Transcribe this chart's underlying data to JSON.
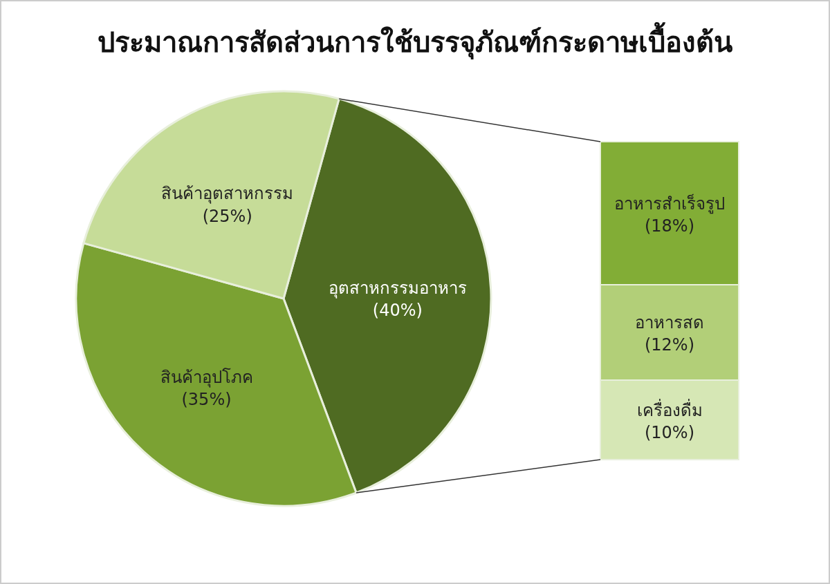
{
  "chart_data": [
    {
      "type": "pie",
      "title": "ประมาณการสัดส่วนการใช้บรรจุภัณฑ์กระดาษเบื้องต้น",
      "categories": [
        "อุตสาหกรรมอาหาร",
        "สินค้าอุปโภค",
        "สินค้าอุตสาหกรรม"
      ],
      "values": [
        40,
        35,
        25
      ],
      "colors": [
        "#4f6b22",
        "#7ba233",
        "#c6dc98"
      ],
      "value_labels": [
        "(40%)",
        "(35%)",
        "(25%)"
      ]
    },
    {
      "type": "bar",
      "stacked": true,
      "categories": [
        null
      ],
      "series": [
        {
          "name": "เครื่องดื่ม",
          "color": "#d6e7b5",
          "values": [
            10
          ],
          "value_labels": [
            "(10%)"
          ]
        },
        {
          "name": "อาหารสด",
          "color": "#b2cf78",
          "values": [
            12
          ],
          "value_labels": [
            "(12%)"
          ]
        },
        {
          "name": "อาหารสำเร็จรูป",
          "color": "#82ad36",
          "values": [
            18
          ],
          "value_labels": [
            "(18%)"
          ]
        }
      ]
    }
  ]
}
